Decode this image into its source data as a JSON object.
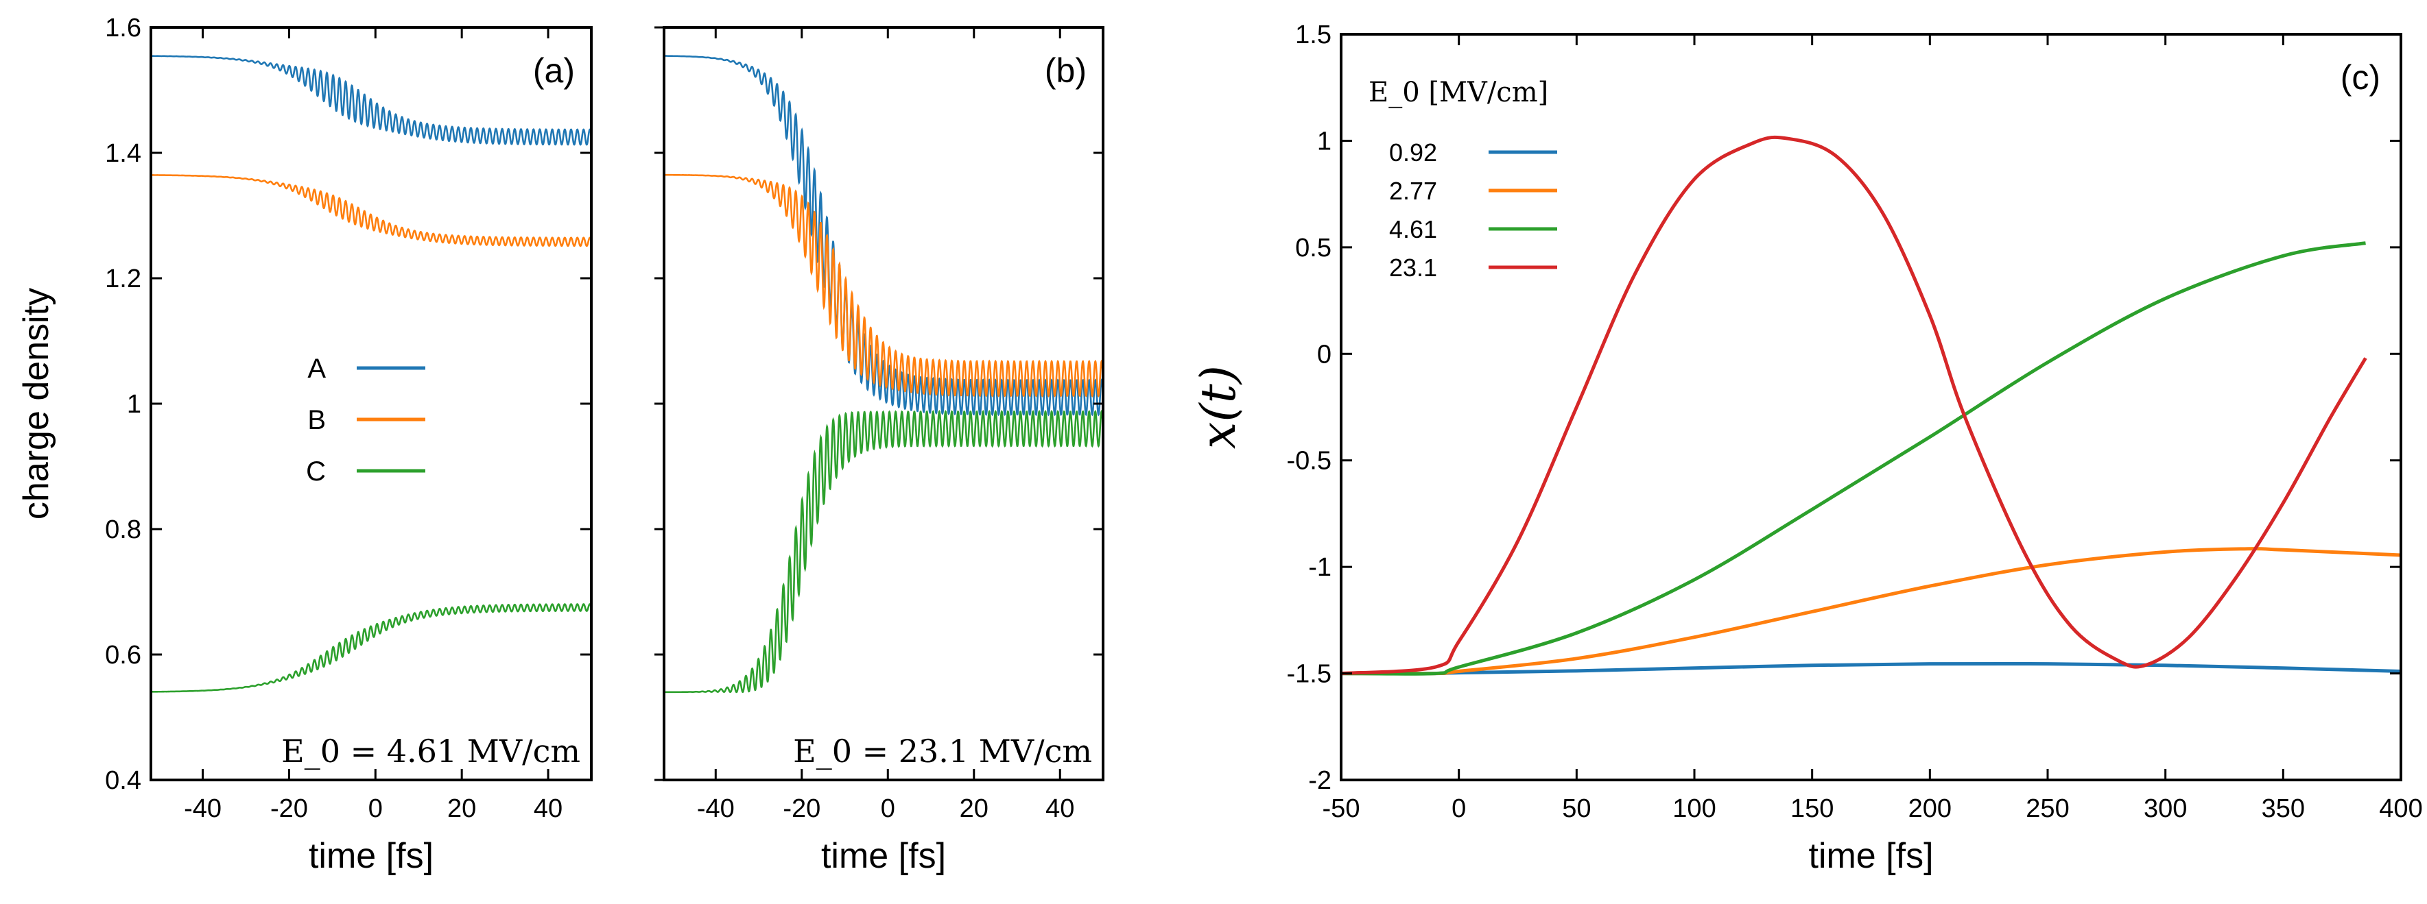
{
  "colors": {
    "A": "#1f77b4",
    "B": "#ff7f0e",
    "C": "#2ca02c",
    "D": "#d62728"
  },
  "chart_data": [
    {
      "id": "a",
      "type": "line",
      "panel_label": "(a)",
      "xlabel": "time [fs]",
      "ylabel": "charge density",
      "xlim": [
        -52,
        50
      ],
      "ylim": [
        0.4,
        1.6
      ],
      "xticks": [
        "-40",
        "-20",
        "0",
        "20",
        "40"
      ],
      "yticks": [
        "0.4",
        "0.6",
        "0.8",
        "1",
        "1.2",
        "1.4",
        "1.6"
      ],
      "annotation": "E_0 = 4.61 MV/cm",
      "legend": {
        "placement": "center-left",
        "entries": [
          "A",
          "B",
          "C"
        ]
      },
      "series": [
        {
          "name": "A",
          "start": 1.555,
          "end": 1.425,
          "t0": -8,
          "width": 8,
          "osc_amp": 0.022
        },
        {
          "name": "B",
          "start": 1.365,
          "end": 1.258,
          "t0": -8,
          "width": 8,
          "osc_amp": 0.012
        },
        {
          "name": "C",
          "start": 0.54,
          "end": 0.675,
          "t0": -8,
          "width": 8,
          "osc_amp": 0.01
        }
      ]
    },
    {
      "id": "b",
      "type": "line",
      "panel_label": "(b)",
      "xlabel": "time [fs]",
      "xlim": [
        -52,
        50
      ],
      "ylim": [
        0.4,
        1.6
      ],
      "xticks": [
        "-40",
        "-20",
        "0",
        "20",
        "40"
      ],
      "annotation": "E_0 = 23.1 MV/cm",
      "series": [
        {
          "name": "A",
          "start": 1.555,
          "end": 1.01,
          "t0": -16,
          "width": 5,
          "osc_amp": 0.05
        },
        {
          "name": "B",
          "start": 1.365,
          "end": 1.04,
          "t0": -14,
          "width": 5,
          "osc_amp": 0.05
        },
        {
          "name": "C",
          "start": 0.54,
          "end": 0.96,
          "t0": -21,
          "width": 3.5,
          "osc_amp": 0.05
        }
      ]
    },
    {
      "id": "c",
      "type": "line",
      "panel_label": "(c)",
      "xlabel": "time [fs]",
      "ylabel": "x(t)",
      "xlim": [
        -50,
        400
      ],
      "ylim": [
        -2,
        1.5
      ],
      "xticks": [
        "-50",
        "0",
        "50",
        "100",
        "150",
        "200",
        "250",
        "300",
        "350",
        "400"
      ],
      "yticks": [
        "1.5",
        "1",
        "0.5",
        "0",
        "-0.5",
        "-1",
        "-1.5",
        "-2"
      ],
      "legend": {
        "title": "E_0 [MV/cm]",
        "placement": "top-left",
        "entries": [
          "0.92",
          "2.77",
          "4.61",
          "23.1"
        ]
      },
      "series": [
        {
          "name": "0.92",
          "color_key": "A",
          "x": [
            -50,
            -10,
            0,
            50,
            100,
            150,
            200,
            250,
            300,
            350,
            400
          ],
          "y": [
            -1.5,
            -1.5,
            -1.497,
            -1.488,
            -1.475,
            -1.462,
            -1.455,
            -1.455,
            -1.462,
            -1.475,
            -1.49
          ]
        },
        {
          "name": "2.77",
          "color_key": "B",
          "x": [
            -50,
            -10,
            0,
            50,
            100,
            150,
            200,
            250,
            300,
            335,
            350,
            400
          ],
          "y": [
            -1.5,
            -1.5,
            -1.49,
            -1.43,
            -1.33,
            -1.21,
            -1.09,
            -0.99,
            -0.93,
            -0.915,
            -0.92,
            -0.945
          ]
        },
        {
          "name": "4.61",
          "color_key": "C",
          "x": [
            -50,
            -10,
            0,
            50,
            100,
            150,
            200,
            250,
            300,
            350,
            385
          ],
          "y": [
            -1.5,
            -1.5,
            -1.47,
            -1.31,
            -1.06,
            -0.73,
            -0.39,
            -0.04,
            0.26,
            0.46,
            0.52
          ]
        },
        {
          "name": "23.1",
          "color_key": "D",
          "x": [
            -50,
            -10,
            0,
            25,
            50,
            75,
            100,
            125,
            140,
            160,
            180,
            200,
            215,
            240,
            260,
            280,
            292,
            310,
            330,
            350,
            370,
            385
          ],
          "y": [
            -1.5,
            -1.47,
            -1.35,
            -0.88,
            -0.25,
            0.38,
            0.82,
            0.99,
            1.01,
            0.93,
            0.66,
            0.18,
            -0.3,
            -0.93,
            -1.28,
            -1.44,
            -1.46,
            -1.33,
            -1.05,
            -0.7,
            -0.3,
            -0.02
          ]
        }
      ]
    }
  ]
}
